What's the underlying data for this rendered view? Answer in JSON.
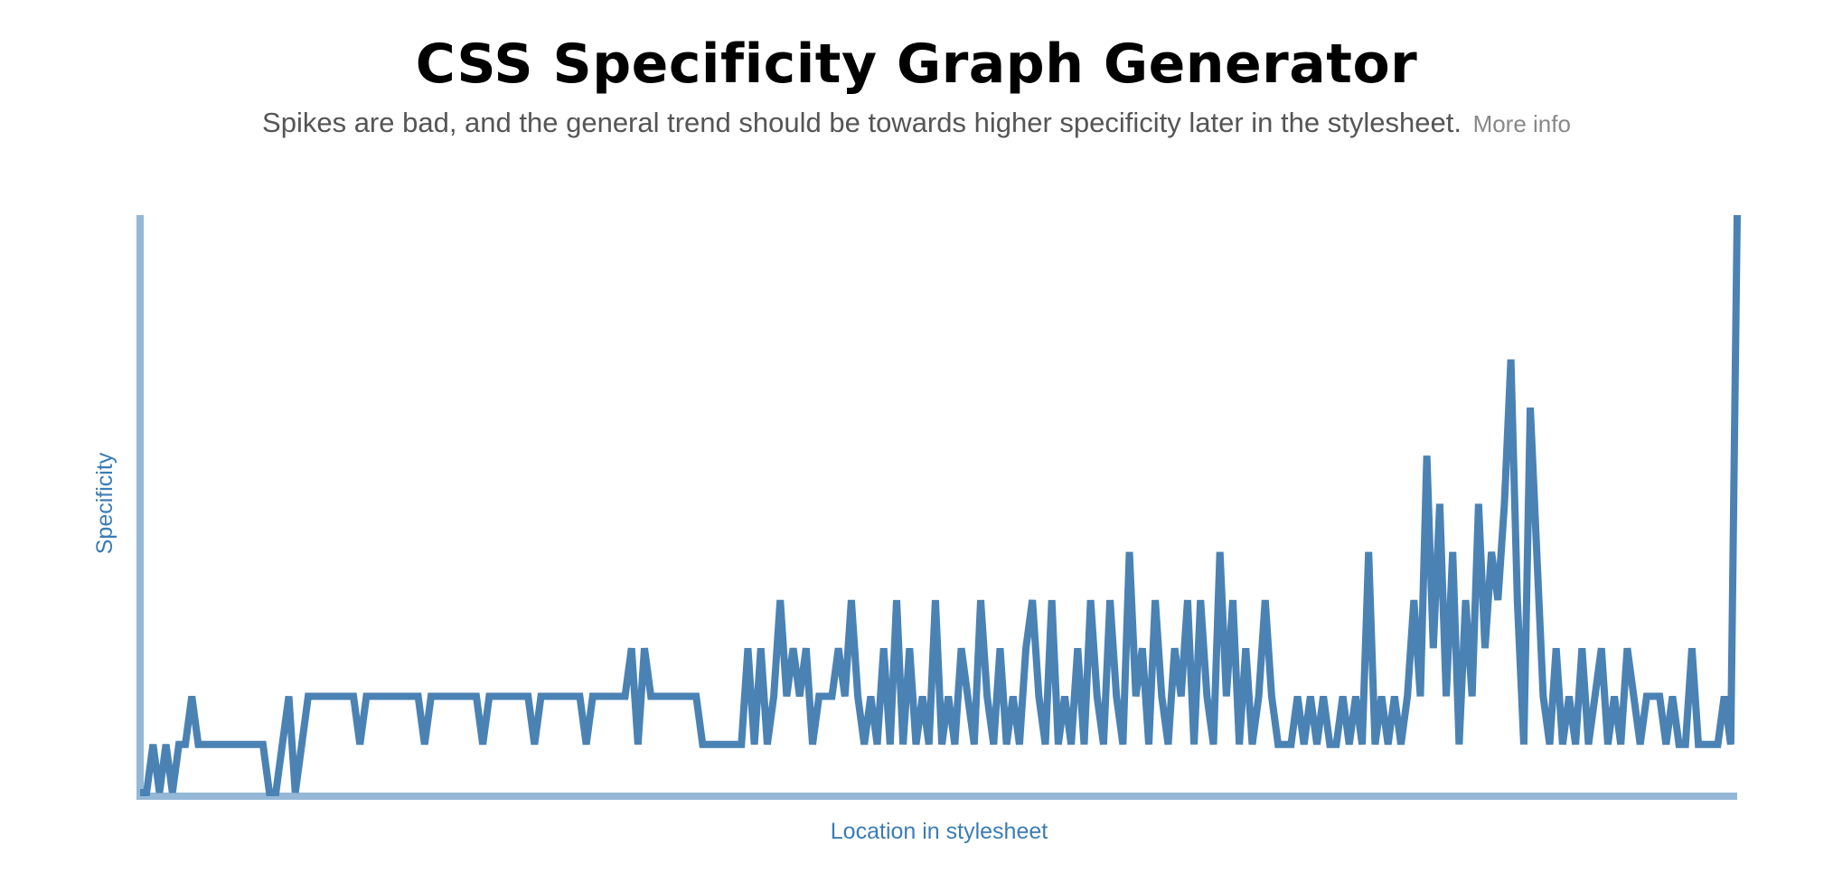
{
  "chart_data": {
    "type": "line",
    "title": "CSS Specificity Graph Generator",
    "subtitle": "Spikes are bad, and the general trend should be towards higher specificity later in the stylesheet.",
    "link": "More info",
    "x_label": "Location in stylesheet",
    "y_label": "Specificity",
    "color": "#4a82b4",
    "axis_color": "#94b8d6",
    "ylim": [
      0,
      12
    ],
    "values": [
      0,
      0,
      1,
      0,
      1,
      0,
      1,
      1,
      2,
      1,
      1,
      1,
      1,
      1,
      1,
      1,
      1,
      1,
      1,
      1,
      0,
      0,
      1,
      2,
      0,
      1,
      2,
      2,
      2,
      2,
      2,
      2,
      2,
      2,
      1,
      2,
      2,
      2,
      2,
      2,
      2,
      2,
      2,
      2,
      1,
      2,
      2,
      2,
      2,
      2,
      2,
      2,
      2,
      1,
      2,
      2,
      2,
      2,
      2,
      2,
      2,
      1,
      2,
      2,
      2,
      2,
      2,
      2,
      2,
      1,
      2,
      2,
      2,
      2,
      2,
      2,
      3,
      1,
      3,
      2,
      2,
      2,
      2,
      2,
      2,
      2,
      2,
      1,
      1,
      1,
      1,
      1,
      1,
      1,
      3,
      1,
      3,
      1,
      2,
      4,
      2,
      3,
      2,
      3,
      1,
      2,
      2,
      2,
      3,
      2,
      4,
      2,
      1,
      2,
      1,
      3,
      1,
      4,
      1,
      3,
      1,
      2,
      1,
      4,
      1,
      2,
      1,
      3,
      2,
      1,
      4,
      2,
      1,
      3,
      1,
      2,
      1,
      3,
      4,
      2,
      1,
      4,
      1,
      2,
      1,
      3,
      1,
      4,
      2,
      1,
      4,
      2,
      1,
      5,
      2,
      3,
      1,
      4,
      2,
      1,
      3,
      2,
      4,
      1,
      4,
      2,
      1,
      5,
      2,
      4,
      1,
      3,
      1,
      2,
      4,
      2,
      1,
      1,
      1,
      2,
      1,
      2,
      1,
      2,
      1,
      1,
      2,
      1,
      2,
      1,
      5,
      1,
      2,
      1,
      2,
      1,
      2,
      4,
      2,
      7,
      3,
      6,
      2,
      5,
      1,
      4,
      2,
      6,
      3,
      5,
      4,
      6,
      9,
      4,
      1,
      8,
      5,
      2,
      1,
      3,
      1,
      2,
      1,
      3,
      1,
      2,
      3,
      1,
      2,
      1,
      3,
      2,
      1,
      2,
      2,
      2,
      1,
      2,
      1,
      1,
      3,
      1,
      1,
      1,
      1,
      2,
      1,
      12
    ]
  }
}
